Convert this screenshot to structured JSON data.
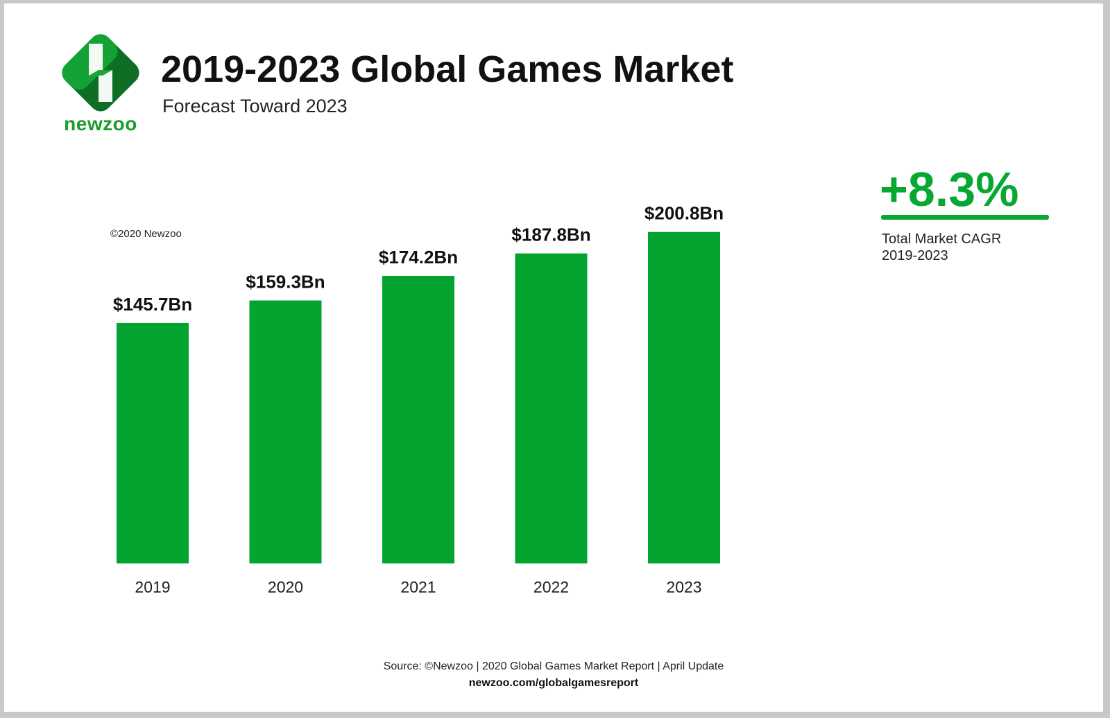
{
  "header": {
    "logo_text": "newzoo",
    "title": "2019-2023 Global Games Market",
    "subtitle": "Forecast Toward 2023",
    "copyright": "©2020 Newzoo"
  },
  "cagr": {
    "value": "+8.3%",
    "label_line1": "Total Market CAGR",
    "label_line2": "2019-2023"
  },
  "footer": {
    "source": "Source: ©Newzoo | 2020 Global Games Market Report | April Update",
    "url": "newzoo.com/globalgamesreport"
  },
  "colors": {
    "bar": "#03a32f",
    "accent": "#07a832",
    "logo_dark": "#0d6e24",
    "logo_mid": "#13a233"
  },
  "chart_data": {
    "type": "bar",
    "categories": [
      "2019",
      "2020",
      "2021",
      "2022",
      "2023"
    ],
    "values": [
      145.7,
      159.3,
      174.2,
      187.8,
      200.8
    ],
    "data_labels": [
      "$145.7Bn",
      "$159.3Bn",
      "$174.2Bn",
      "$187.8Bn",
      "$200.8Bn"
    ],
    "title": "2019-2023 Global Games Market",
    "subtitle": "Forecast Toward 2023",
    "xlabel": "",
    "ylabel": "",
    "unit": "USD billion",
    "grid": false,
    "legend": "none"
  }
}
